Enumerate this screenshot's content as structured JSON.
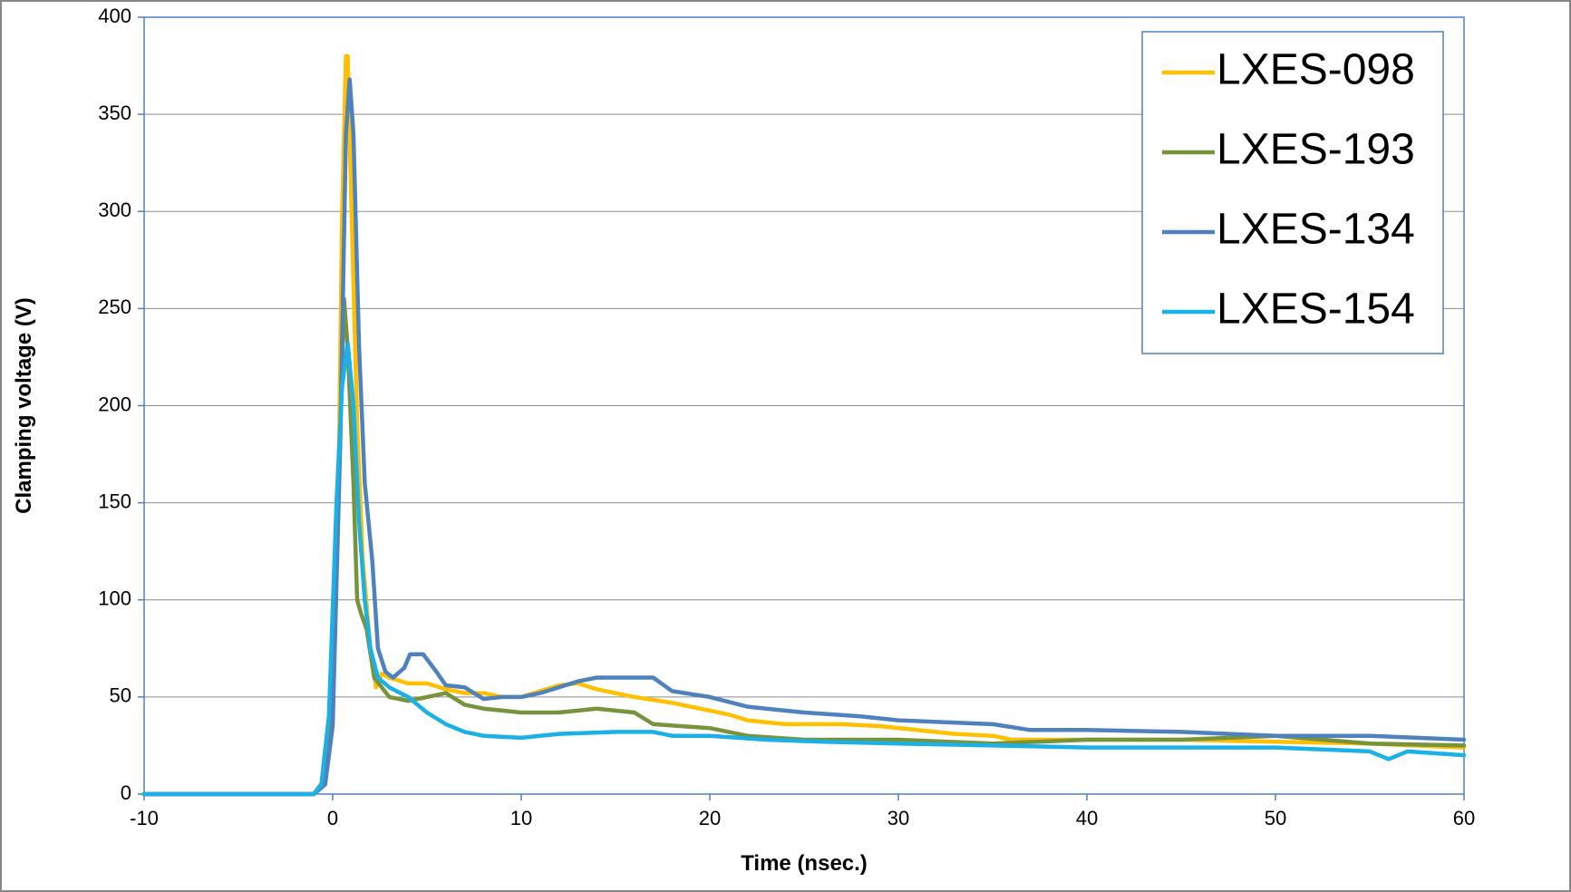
{
  "chart_data": {
    "type": "line",
    "xlabel": "Time (nsec.)",
    "ylabel": "Clamping voltage (V)",
    "xlim": [
      -10,
      60
    ],
    "ylim": [
      0,
      400
    ],
    "xticks": [
      -10,
      0,
      10,
      20,
      30,
      40,
      50,
      60
    ],
    "yticks": [
      0,
      50,
      100,
      150,
      200,
      250,
      300,
      350,
      400
    ],
    "x_tick_labels": [
      "-10",
      "0",
      "10",
      "20",
      "30",
      "40",
      "50",
      "60"
    ],
    "y_tick_labels": [
      "0",
      "50",
      "100",
      "150",
      "200",
      "250",
      "300",
      "350",
      "400"
    ],
    "grid": "horizontal",
    "legend_position": "top-right",
    "series": [
      {
        "name": "LXES-098",
        "color": "#FFC000",
        "points": [
          [
            -10,
            0
          ],
          [
            -2,
            0
          ],
          [
            -1,
            0
          ],
          [
            -0.4,
            5
          ],
          [
            0,
            40
          ],
          [
            0.3,
            150
          ],
          [
            0.5,
            300
          ],
          [
            0.7,
            380
          ],
          [
            0.8,
            380
          ],
          [
            1.0,
            300
          ],
          [
            1.3,
            190
          ],
          [
            1.6,
            120
          ],
          [
            2,
            75
          ],
          [
            2.3,
            55
          ],
          [
            2.6,
            62
          ],
          [
            3,
            60
          ],
          [
            4,
            57
          ],
          [
            5,
            57
          ],
          [
            6,
            54
          ],
          [
            7,
            52
          ],
          [
            8,
            52
          ],
          [
            9,
            50
          ],
          [
            10,
            50
          ],
          [
            11,
            53
          ],
          [
            12,
            56
          ],
          [
            13,
            57
          ],
          [
            14,
            54
          ],
          [
            16,
            50
          ],
          [
            18,
            47
          ],
          [
            20,
            43
          ],
          [
            21,
            41
          ],
          [
            22,
            38
          ],
          [
            24,
            36
          ],
          [
            27,
            36
          ],
          [
            29,
            35
          ],
          [
            31,
            33
          ],
          [
            33,
            31
          ],
          [
            35,
            30
          ],
          [
            36,
            28
          ],
          [
            38,
            28
          ],
          [
            40,
            28
          ],
          [
            45,
            28
          ],
          [
            50,
            27
          ],
          [
            55,
            26
          ],
          [
            60,
            24
          ]
        ]
      },
      {
        "name": "LXES-193",
        "color": "#77933C",
        "points": [
          [
            -10,
            0
          ],
          [
            -2,
            0
          ],
          [
            -1,
            0
          ],
          [
            -0.4,
            8
          ],
          [
            0,
            40
          ],
          [
            0.3,
            150
          ],
          [
            0.6,
            255
          ],
          [
            0.8,
            230
          ],
          [
            1.1,
            160
          ],
          [
            1.3,
            100
          ],
          [
            1.5,
            93
          ],
          [
            1.8,
            85
          ],
          [
            2.2,
            60
          ],
          [
            3,
            50
          ],
          [
            4,
            48
          ],
          [
            5,
            50
          ],
          [
            6,
            52
          ],
          [
            7,
            46
          ],
          [
            8,
            44
          ],
          [
            10,
            42
          ],
          [
            12,
            42
          ],
          [
            14,
            44
          ],
          [
            16,
            42
          ],
          [
            17,
            36
          ],
          [
            20,
            34
          ],
          [
            22,
            30
          ],
          [
            25,
            28
          ],
          [
            30,
            28
          ],
          [
            35,
            26
          ],
          [
            40,
            28
          ],
          [
            45,
            28
          ],
          [
            50,
            30
          ],
          [
            55,
            26
          ],
          [
            60,
            25
          ]
        ]
      },
      {
        "name": "LXES-134",
        "color": "#4F81BD",
        "points": [
          [
            -10,
            0
          ],
          [
            -2,
            0
          ],
          [
            -1,
            0
          ],
          [
            -0.4,
            5
          ],
          [
            0,
            35
          ],
          [
            0.4,
            180
          ],
          [
            0.7,
            340
          ],
          [
            0.9,
            368
          ],
          [
            1.1,
            340
          ],
          [
            1.4,
            230
          ],
          [
            1.7,
            160
          ],
          [
            2.1,
            120
          ],
          [
            2.4,
            75
          ],
          [
            2.8,
            63
          ],
          [
            3.2,
            60
          ],
          [
            3.8,
            65
          ],
          [
            4.1,
            72
          ],
          [
            4.8,
            72
          ],
          [
            5.5,
            63
          ],
          [
            6,
            56
          ],
          [
            7,
            55
          ],
          [
            8,
            49
          ],
          [
            9,
            50
          ],
          [
            10,
            50
          ],
          [
            11,
            52
          ],
          [
            12,
            55
          ],
          [
            13,
            58
          ],
          [
            14,
            60
          ],
          [
            17,
            60
          ],
          [
            18,
            53
          ],
          [
            20,
            50
          ],
          [
            22,
            45
          ],
          [
            25,
            42
          ],
          [
            28,
            40
          ],
          [
            30,
            38
          ],
          [
            35,
            36
          ],
          [
            37,
            33
          ],
          [
            40,
            33
          ],
          [
            45,
            32
          ],
          [
            50,
            30
          ],
          [
            55,
            30
          ],
          [
            60,
            28
          ]
        ]
      },
      {
        "name": "LXES-154",
        "color": "#1BB0E6",
        "points": [
          [
            -10,
            0
          ],
          [
            -2,
            0
          ],
          [
            -1,
            0
          ],
          [
            -0.6,
            5
          ],
          [
            -0.2,
            40
          ],
          [
            0.2,
            150
          ],
          [
            0.5,
            210
          ],
          [
            0.8,
            232
          ],
          [
            1.1,
            200
          ],
          [
            1.4,
            140
          ],
          [
            1.7,
            100
          ],
          [
            2,
            75
          ],
          [
            2.4,
            60
          ],
          [
            3,
            55
          ],
          [
            4,
            50
          ],
          [
            5,
            42
          ],
          [
            6,
            36
          ],
          [
            7,
            32
          ],
          [
            8,
            30
          ],
          [
            10,
            29
          ],
          [
            12,
            31
          ],
          [
            15,
            32
          ],
          [
            17,
            32
          ],
          [
            18,
            30
          ],
          [
            20,
            30
          ],
          [
            23,
            28
          ],
          [
            26,
            27
          ],
          [
            30,
            26
          ],
          [
            35,
            25
          ],
          [
            40,
            24
          ],
          [
            45,
            24
          ],
          [
            50,
            24
          ],
          [
            55,
            22
          ],
          [
            56,
            18
          ],
          [
            57,
            22
          ],
          [
            60,
            20
          ]
        ]
      }
    ]
  }
}
